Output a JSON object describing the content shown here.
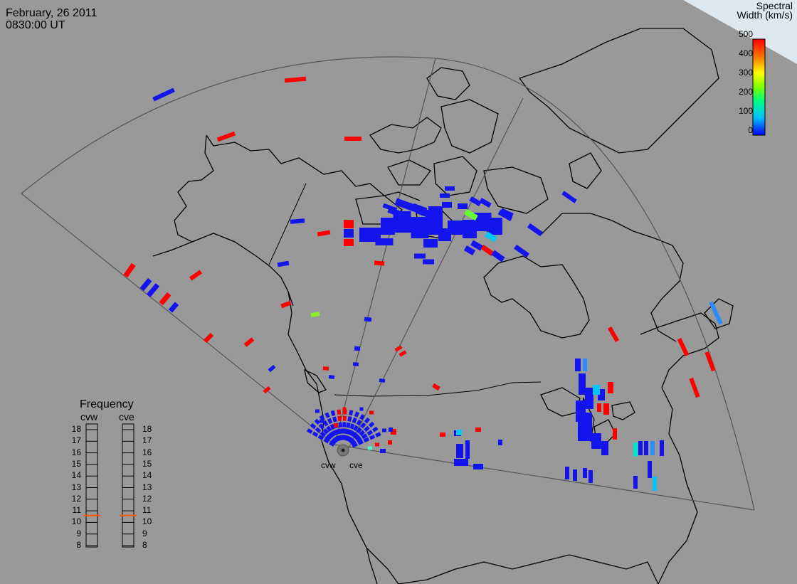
{
  "header": {
    "date": "February, 26 2011",
    "time": "0830:00 UT"
  },
  "colorbar": {
    "title_line1": "Spectral",
    "title_line2": "Width (km/s)",
    "ticks": [
      "500",
      "400",
      "300",
      "200",
      "100",
      "0"
    ],
    "range": [
      0,
      500
    ]
  },
  "frequency_panel": {
    "title": "Frequency",
    "radars": [
      "cvw",
      "cve"
    ],
    "ticks": [
      "18",
      "17",
      "16",
      "15",
      "14",
      "13",
      "12",
      "11",
      "10",
      "9",
      "8"
    ],
    "values_mhz": {
      "cvw": 10.6,
      "cve": 10.6
    },
    "marker_color": "#ff5a00"
  },
  "radar_labels": [
    "cvw",
    "cve"
  ],
  "colors": {
    "background": "#999999",
    "coast": "#000000",
    "fov": "#555555"
  }
}
